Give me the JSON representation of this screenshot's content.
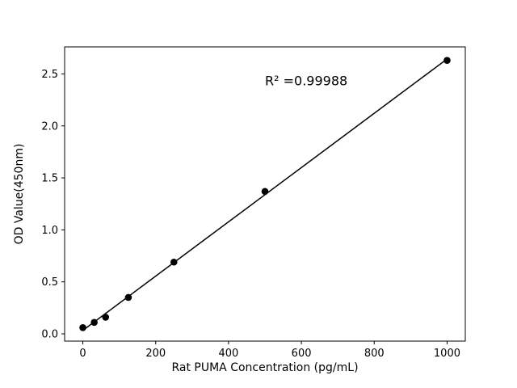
{
  "chart_data": {
    "type": "scatter",
    "x": [
      0,
      31.25,
      62.5,
      125,
      250,
      500,
      1000
    ],
    "y": [
      0.06,
      0.11,
      0.16,
      0.35,
      0.69,
      1.37,
      2.63
    ],
    "title": "",
    "xlabel": "Rat PUMA Concentration (pg/mL)",
    "ylabel": "OD Value(450nm)",
    "xlim": [
      -50,
      1050
    ],
    "ylim": [
      -0.07,
      2.76
    ],
    "xticks": [
      0,
      200,
      400,
      600,
      800,
      1000
    ],
    "yticks": [
      0.0,
      0.5,
      1.0,
      1.5,
      2.0,
      2.5
    ],
    "annotation": {
      "text": "R² =0.99988",
      "x": 500,
      "y": 2.39
    },
    "fit_line": true,
    "marker_color": "#000000",
    "line_color": "#000000",
    "grid": false,
    "legend": "none"
  }
}
